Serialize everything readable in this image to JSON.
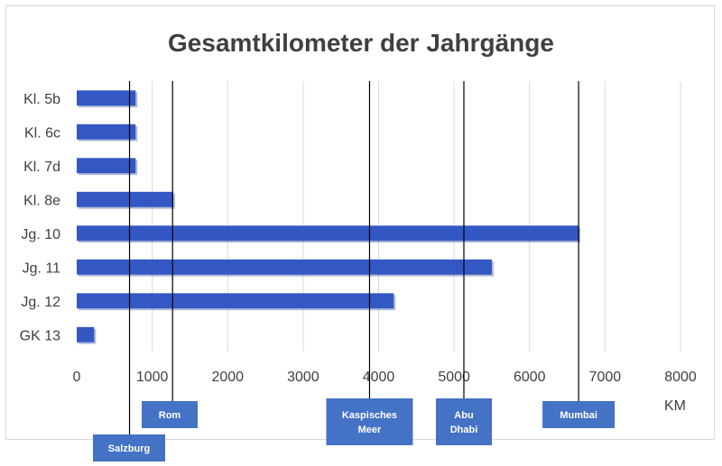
{
  "chart_data": {
    "type": "bar",
    "orientation": "horizontal",
    "title": "Gesamtkilometer der Jahrgänge",
    "xlabel": "KM",
    "ylabel": "",
    "categories": [
      "Kl. 5b",
      "Kl. 6c",
      "Kl. 7d",
      "Kl. 8e",
      "Jg. 10",
      "Jg. 11",
      "Jg. 12",
      "GK 13"
    ],
    "values": [
      780,
      780,
      780,
      1280,
      6650,
      5500,
      4200,
      230
    ],
    "xlim": [
      0,
      8000
    ],
    "xticks": [
      0,
      1000,
      2000,
      3000,
      4000,
      5000,
      6000,
      7000,
      8000
    ],
    "grid": true,
    "bar_color": "#3358c4",
    "reference_lines": [
      {
        "label": "Salzburg",
        "value": 700
      },
      {
        "label": "Rom",
        "value": 1270
      },
      {
        "label": "Kaspisches Meer",
        "value": 3880
      },
      {
        "label": "Abu Dhabi",
        "value": 5130
      },
      {
        "label": "Mumbai",
        "value": 6650
      }
    ],
    "marker_color": "#4472c4"
  }
}
